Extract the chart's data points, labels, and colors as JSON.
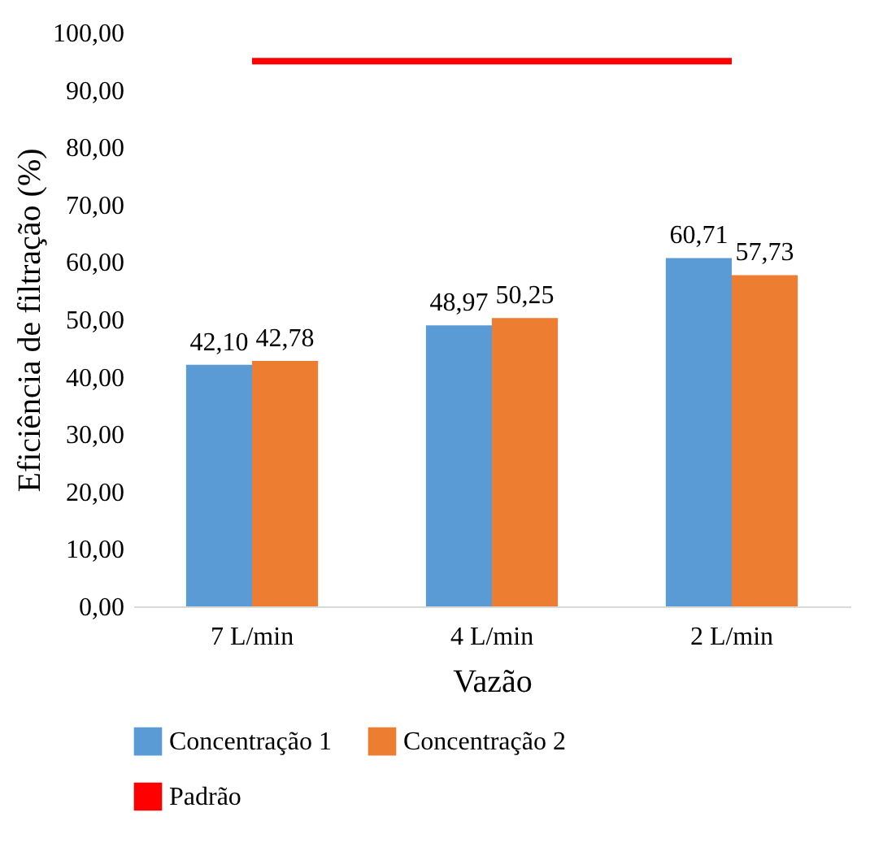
{
  "chart_data": {
    "type": "bar",
    "xlabel": "Vazão",
    "ylabel": "Eficiência de filtração (%)",
    "categories": [
      "7 L/min",
      "4 L/min",
      "2 L/min"
    ],
    "series": [
      {
        "name": "Concentração 1",
        "color": "#5b9bd5",
        "values": [
          42.1,
          48.97,
          60.71
        ],
        "value_labels": [
          "42,10",
          "48,97",
          "60,71"
        ]
      },
      {
        "name": "Concentração 2",
        "color": "#ed7d31",
        "values": [
          42.78,
          50.25,
          57.73
        ],
        "value_labels": [
          "42,78",
          "50,25",
          "57,73"
        ]
      },
      {
        "name": "Padrão",
        "type": "line",
        "color": "#ff0000",
        "values": [
          95,
          95,
          95
        ]
      }
    ],
    "ylim": [
      0,
      100
    ],
    "yticks": [
      {
        "value": 0,
        "label": "0,00"
      },
      {
        "value": 10,
        "label": "10,00"
      },
      {
        "value": 20,
        "label": "20,00"
      },
      {
        "value": 30,
        "label": "30,00"
      },
      {
        "value": 40,
        "label": "40,00"
      },
      {
        "value": 50,
        "label": "50,00"
      },
      {
        "value": 60,
        "label": "60,00"
      },
      {
        "value": 70,
        "label": "70,00"
      },
      {
        "value": 80,
        "label": "80,00"
      },
      {
        "value": 90,
        "label": "90,00"
      },
      {
        "value": 100,
        "label": "100,00"
      }
    ],
    "grid": false,
    "legend": "bottom",
    "marker": "none"
  }
}
